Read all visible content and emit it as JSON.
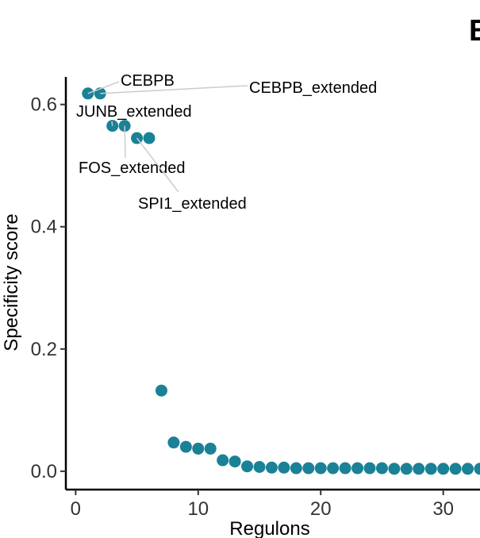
{
  "panel_letter": "B",
  "chart_data": {
    "type": "scatter",
    "xlabel": "Regulons",
    "ylabel": "Specificity score",
    "xlim": [
      -0.8,
      33
    ],
    "ylim": [
      -0.03,
      0.645
    ],
    "x_ticks": [
      0,
      10,
      20,
      30
    ],
    "x_tick_labels": [
      "0",
      "10",
      "20",
      "30"
    ],
    "y_ticks": [
      0,
      0.2,
      0.4,
      0.6
    ],
    "y_tick_labels": [
      "0.0",
      "0.2",
      "0.4",
      "0.6"
    ],
    "grid": false,
    "marker_color": "#1a8196",
    "x": [
      1,
      2,
      3,
      4,
      5,
      6,
      7,
      8,
      9,
      10,
      11,
      12,
      13,
      14,
      15,
      16,
      17,
      18,
      19,
      20,
      21,
      22,
      23,
      24,
      25,
      26,
      27,
      28,
      29,
      30,
      31,
      32,
      33
    ],
    "y": [
      0.618,
      0.618,
      0.565,
      0.565,
      0.545,
      0.545,
      0.132,
      0.047,
      0.04,
      0.037,
      0.037,
      0.018,
      0.016,
      0.008,
      0.007,
      0.006,
      0.006,
      0.005,
      0.005,
      0.005,
      0.005,
      0.005,
      0.005,
      0.005,
      0.005,
      0.004,
      0.004,
      0.004,
      0.004,
      0.004,
      0.004,
      0.004,
      0.004
    ],
    "annotations": [
      {
        "text": "CEBPB",
        "point_index": 0
      },
      {
        "text": "CEBPB_extended",
        "point_index": 1
      },
      {
        "text": "JUNB_extended",
        "point_index": 2
      },
      {
        "text": "FOS_extended",
        "point_index": 3
      },
      {
        "text": "SPI1_extended",
        "point_index": 4
      }
    ]
  }
}
